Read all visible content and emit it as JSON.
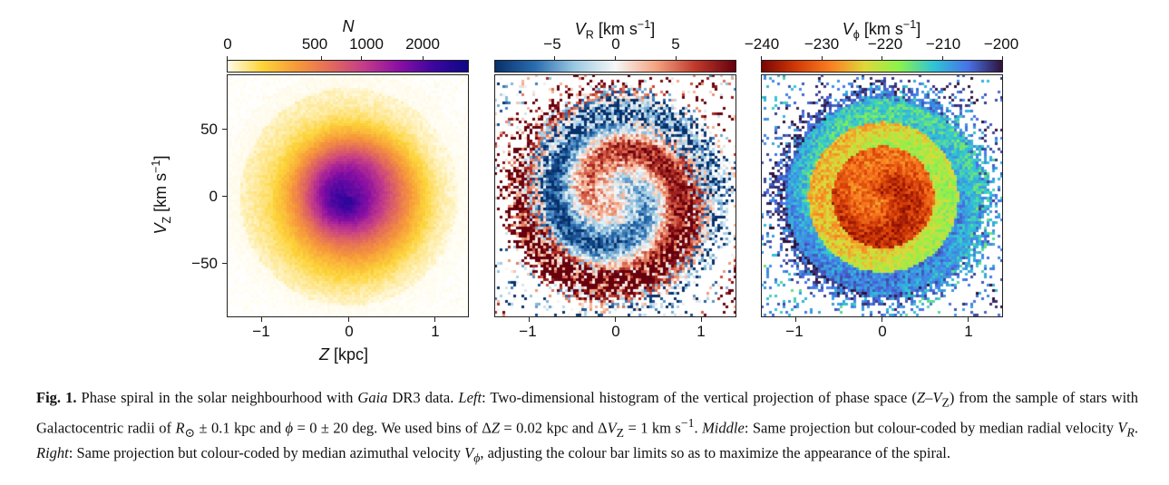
{
  "figure": {
    "panels": [
      {
        "id": "left",
        "colorbar": {
          "title": "N",
          "ticks": [
            "0",
            "500",
            "1000",
            "2000"
          ],
          "colormap": "plasma_r",
          "colors": [
            "#fffbe8",
            "#fdd43a",
            "#f79a3a",
            "#e36a5c",
            "#c23a8a",
            "#8a0fa3",
            "#3c05a0",
            "#0d0887"
          ]
        },
        "xticks": [
          "−1",
          "0",
          "1"
        ],
        "yticks": [
          "50",
          "0",
          "−50"
        ],
        "xlabel": "Z [kpc]",
        "ylabel": "V_Z  [km s^−1]"
      },
      {
        "id": "middle",
        "colorbar": {
          "title": "V_R [km s^−1]",
          "ticks": [
            "−5",
            "0",
            "5"
          ],
          "colormap": "RdBu_r",
          "colors": [
            "#08306b",
            "#2a6db0",
            "#9ccae3",
            "#f7f7f7",
            "#f4a582",
            "#c0392b",
            "#67000d"
          ]
        },
        "xticks": [
          "−1",
          "0",
          "1"
        ]
      },
      {
        "id": "right",
        "colorbar": {
          "title": "V_ϕ [km s^−1]",
          "ticks": [
            "−240",
            "−230",
            "−220",
            "−210",
            "−200"
          ],
          "colormap": "turbo",
          "colors": [
            "#7a0403",
            "#d23a06",
            "#fb7e21",
            "#dfd839",
            "#8bf24b",
            "#2fc5d6",
            "#4773e8",
            "#30123b"
          ]
        },
        "xticks": [
          "−1",
          "0",
          "1"
        ]
      }
    ],
    "axis_ranges": {
      "x": [
        -1.4,
        1.4
      ],
      "y": [
        -90,
        90
      ]
    }
  },
  "caption": {
    "label": "Fig. 1.",
    "text": " Phase spiral in the solar neighbourhood with Gaia DR3 data. Left: Two-dimensional histogram of the vertical projection of phase space (Z–V_Z) from the sample of stars with Galactocentric radii of R⊙ ± 0.1 kpc and ϕ = 0 ± 20 deg. We used bins of ΔZ = 0.02 kpc and ΔV_Z = 1 km s^−1. Middle: Same projection but colour-coded by median radial velocity V_R. Right: Same projection but colour-coded by median azimuthal velocity V_ϕ, adjusting the colour bar limits so as to maximize the appearance of the spiral."
  }
}
